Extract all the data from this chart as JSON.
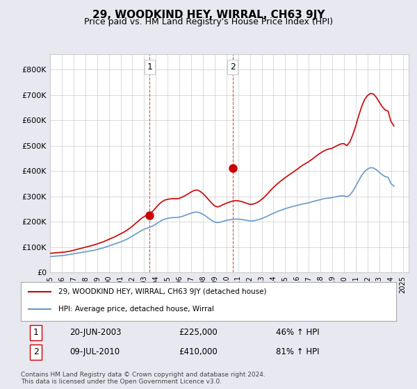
{
  "title": "29, WOODKIND HEY, WIRRAL, CH63 9JY",
  "subtitle": "Price paid vs. HM Land Registry's House Price Index (HPI)",
  "title_fontsize": 12,
  "subtitle_fontsize": 10,
  "ylabel": "",
  "ylim": [
    0,
    860000
  ],
  "yticks": [
    0,
    100000,
    200000,
    300000,
    400000,
    500000,
    600000,
    700000,
    800000
  ],
  "ytick_labels": [
    "£0",
    "£100K",
    "£200K",
    "£300K",
    "£400K",
    "£500K",
    "£600K",
    "£700K",
    "£800K"
  ],
  "background_color": "#e8e8f0",
  "plot_background_color": "#ffffff",
  "grid_color": "#cccccc",
  "red_color": "#cc0000",
  "blue_color": "#6699cc",
  "transaction1": {
    "date_num": 2003.47,
    "price": 225000,
    "label": "1"
  },
  "transaction2": {
    "date_num": 2010.52,
    "price": 410000,
    "label": "2"
  },
  "legend_entry1": "29, WOODKIND HEY, WIRRAL, CH63 9JY (detached house)",
  "legend_entry2": "HPI: Average price, detached house, Wirral",
  "annotation1_date": "20-JUN-2003",
  "annotation1_price": "£225,000",
  "annotation1_hpi": "46% ↑ HPI",
  "annotation2_date": "09-JUL-2010",
  "annotation2_price": "£410,000",
  "annotation2_hpi": "81% ↑ HPI",
  "footer": "Contains HM Land Registry data © Crown copyright and database right 2024.\nThis data is licensed under the Open Government Licence v3.0.",
  "hpi_data": {
    "years": [
      1995.0,
      1995.25,
      1995.5,
      1995.75,
      1996.0,
      1996.25,
      1996.5,
      1996.75,
      1997.0,
      1997.25,
      1997.5,
      1997.75,
      1998.0,
      1998.25,
      1998.5,
      1998.75,
      1999.0,
      1999.25,
      1999.5,
      1999.75,
      2000.0,
      2000.25,
      2000.5,
      2000.75,
      2001.0,
      2001.25,
      2001.5,
      2001.75,
      2002.0,
      2002.25,
      2002.5,
      2002.75,
      2003.0,
      2003.25,
      2003.5,
      2003.75,
      2004.0,
      2004.25,
      2004.5,
      2004.75,
      2005.0,
      2005.25,
      2005.5,
      2005.75,
      2006.0,
      2006.25,
      2006.5,
      2006.75,
      2007.0,
      2007.25,
      2007.5,
      2007.75,
      2008.0,
      2008.25,
      2008.5,
      2008.75,
      2009.0,
      2009.25,
      2009.5,
      2009.75,
      2010.0,
      2010.25,
      2010.5,
      2010.75,
      2011.0,
      2011.25,
      2011.5,
      2011.75,
      2012.0,
      2012.25,
      2012.5,
      2012.75,
      2013.0,
      2013.25,
      2013.5,
      2013.75,
      2014.0,
      2014.25,
      2014.5,
      2014.75,
      2015.0,
      2015.25,
      2015.5,
      2015.75,
      2016.0,
      2016.25,
      2016.5,
      2016.75,
      2017.0,
      2017.25,
      2017.5,
      2017.75,
      2018.0,
      2018.25,
      2018.5,
      2018.75,
      2019.0,
      2019.25,
      2019.5,
      2019.75,
      2020.0,
      2020.25,
      2020.5,
      2020.75,
      2021.0,
      2021.25,
      2021.5,
      2021.75,
      2022.0,
      2022.25,
      2022.5,
      2022.75,
      2023.0,
      2023.25,
      2023.5,
      2023.75,
      2024.0,
      2024.25
    ],
    "values": [
      62000,
      63000,
      64000,
      65000,
      66000,
      67000,
      69000,
      71000,
      73000,
      75000,
      77000,
      79000,
      81000,
      83000,
      85000,
      87000,
      90000,
      93000,
      96000,
      100000,
      104000,
      108000,
      112000,
      116000,
      120000,
      125000,
      130000,
      136000,
      143000,
      150000,
      157000,
      164000,
      170000,
      174000,
      178000,
      183000,
      190000,
      198000,
      205000,
      210000,
      213000,
      215000,
      216000,
      216000,
      218000,
      221000,
      225000,
      229000,
      233000,
      237000,
      238000,
      235000,
      229000,
      222000,
      213000,
      205000,
      198000,
      196000,
      198000,
      202000,
      205000,
      207000,
      209000,
      210000,
      210000,
      209000,
      207000,
      205000,
      203000,
      203000,
      205000,
      208000,
      212000,
      217000,
      222000,
      228000,
      233000,
      238000,
      243000,
      247000,
      251000,
      255000,
      258000,
      261000,
      264000,
      267000,
      270000,
      272000,
      274000,
      278000,
      281000,
      284000,
      287000,
      290000,
      292000,
      293000,
      295000,
      298000,
      300000,
      302000,
      302000,
      298000,
      305000,
      320000,
      340000,
      362000,
      382000,
      398000,
      408000,
      413000,
      412000,
      405000,
      395000,
      385000,
      378000,
      375000,
      350000,
      340000
    ],
    "red_values": [
      75000,
      76000,
      77000,
      78000,
      79000,
      80000,
      82000,
      84000,
      87000,
      90000,
      93000,
      96000,
      99000,
      102000,
      105000,
      108000,
      112000,
      116000,
      120000,
      125000,
      130000,
      135000,
      140000,
      146000,
      152000,
      158000,
      165000,
      173000,
      182000,
      192000,
      202000,
      212000,
      220000,
      225000,
      232000,
      242000,
      255000,
      268000,
      278000,
      285000,
      288000,
      290000,
      291000,
      290000,
      292000,
      297000,
      303000,
      310000,
      317000,
      323000,
      325000,
      320000,
      311000,
      299000,
      286000,
      273000,
      262000,
      258000,
      262000,
      268000,
      273000,
      277000,
      281000,
      283000,
      282000,
      280000,
      276000,
      272000,
      268000,
      269000,
      273000,
      279000,
      288000,
      298000,
      310000,
      323000,
      335000,
      346000,
      356000,
      365000,
      374000,
      382000,
      390000,
      398000,
      406000,
      415000,
      423000,
      430000,
      437000,
      445000,
      454000,
      463000,
      471000,
      478000,
      484000,
      487000,
      490000,
      496000,
      502000,
      507000,
      508000,
      500000,
      515000,
      543000,
      578000,
      618000,
      654000,
      682000,
      698000,
      706000,
      704000,
      691000,
      672000,
      654000,
      641000,
      636000,
      595000,
      578000
    ]
  }
}
